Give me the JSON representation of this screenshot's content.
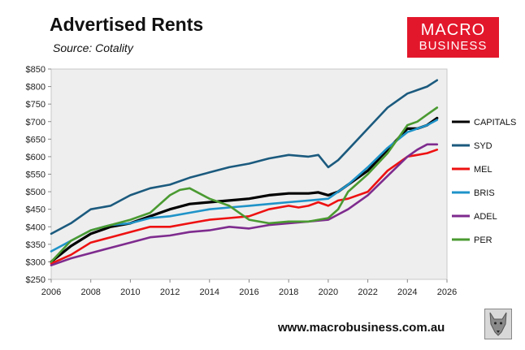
{
  "header": {
    "title": "Advertised Rents",
    "subtitle": "Source: Cotality"
  },
  "brand": {
    "line1": "MACRO",
    "line2": "BUSINESS",
    "url": "www.macrobusiness.com.au",
    "color": "#e3172b"
  },
  "chart_data": {
    "type": "line",
    "title": "Advertised Rents",
    "xlabel": "",
    "ylabel": "",
    "xlim": [
      2006,
      2026
    ],
    "ylim": [
      250,
      850
    ],
    "x_ticks": [
      2006,
      2008,
      2010,
      2012,
      2014,
      2016,
      2018,
      2020,
      2022,
      2024,
      2026
    ],
    "y_ticks": [
      250,
      300,
      350,
      400,
      450,
      500,
      550,
      600,
      650,
      700,
      750,
      800,
      850
    ],
    "y_tick_prefix": "$",
    "legend": "right",
    "series": [
      {
        "name": "CAPITALS",
        "color": "#000000",
        "x": [
          2006,
          2007,
          2008,
          2009,
          2010,
          2011,
          2012,
          2013,
          2014,
          2015,
          2016,
          2017,
          2018,
          2019,
          2019.5,
          2020,
          2020.5,
          2021,
          2022,
          2023,
          2024,
          2024.5,
          2025,
          2025.5
        ],
        "y": [
          300,
          345,
          380,
          400,
          410,
          430,
          450,
          465,
          470,
          475,
          480,
          490,
          495,
          495,
          498,
          490,
          500,
          520,
          560,
          620,
          680,
          680,
          690,
          710
        ]
      },
      {
        "name": "SYD",
        "color": "#1b5a7e",
        "x": [
          2006,
          2007,
          2008,
          2009,
          2010,
          2011,
          2012,
          2013,
          2014,
          2015,
          2016,
          2017,
          2018,
          2019,
          2019.5,
          2020,
          2020.5,
          2021,
          2022,
          2023,
          2024,
          2024.5,
          2025,
          2025.5
        ],
        "y": [
          380,
          410,
          450,
          460,
          490,
          510,
          520,
          540,
          555,
          570,
          580,
          595,
          605,
          600,
          605,
          570,
          590,
          620,
          680,
          740,
          780,
          790,
          800,
          818
        ]
      },
      {
        "name": "MEL",
        "color": "#ee1111",
        "x": [
          2006,
          2007,
          2008,
          2009,
          2010,
          2011,
          2012,
          2013,
          2014,
          2015,
          2016,
          2017,
          2018,
          2018.5,
          2019,
          2019.5,
          2020,
          2020.5,
          2021,
          2022,
          2023,
          2024,
          2024.5,
          2025,
          2025.5
        ],
        "y": [
          295,
          320,
          355,
          370,
          385,
          400,
          400,
          410,
          420,
          425,
          430,
          450,
          460,
          455,
          460,
          470,
          460,
          475,
          480,
          500,
          560,
          600,
          605,
          610,
          620
        ]
      },
      {
        "name": "BRIS",
        "color": "#1f93c8",
        "x": [
          2006,
          2007,
          2008,
          2009,
          2010,
          2011,
          2012,
          2013,
          2014,
          2015,
          2016,
          2017,
          2018,
          2019,
          2020,
          2020.5,
          2021,
          2022,
          2023,
          2024,
          2024.5,
          2025,
          2025.5
        ],
        "y": [
          330,
          360,
          390,
          405,
          410,
          425,
          430,
          440,
          450,
          455,
          460,
          465,
          470,
          475,
          480,
          500,
          520,
          570,
          625,
          670,
          680,
          690,
          705
        ]
      },
      {
        "name": "ADEL",
        "color": "#7e2b8e",
        "x": [
          2006,
          2007,
          2008,
          2009,
          2010,
          2011,
          2012,
          2013,
          2014,
          2015,
          2016,
          2017,
          2018,
          2019,
          2020,
          2020.5,
          2021,
          2022,
          2023,
          2024,
          2024.5,
          2025,
          2025.5
        ],
        "y": [
          290,
          310,
          325,
          340,
          355,
          370,
          375,
          385,
          390,
          400,
          395,
          405,
          410,
          415,
          420,
          435,
          450,
          490,
          545,
          600,
          620,
          635,
          635
        ]
      },
      {
        "name": "PER",
        "color": "#4a9a31",
        "x": [
          2006,
          2007,
          2008,
          2009,
          2010,
          2011,
          2012,
          2012.5,
          2013,
          2014,
          2015,
          2016,
          2017,
          2018,
          2019,
          2020,
          2020.5,
          2021,
          2022,
          2023,
          2024,
          2024.5,
          2025,
          2025.5
        ],
        "y": [
          300,
          360,
          390,
          405,
          420,
          440,
          490,
          505,
          510,
          480,
          460,
          420,
          410,
          415,
          415,
          425,
          450,
          500,
          550,
          610,
          690,
          700,
          720,
          740
        ]
      }
    ]
  }
}
